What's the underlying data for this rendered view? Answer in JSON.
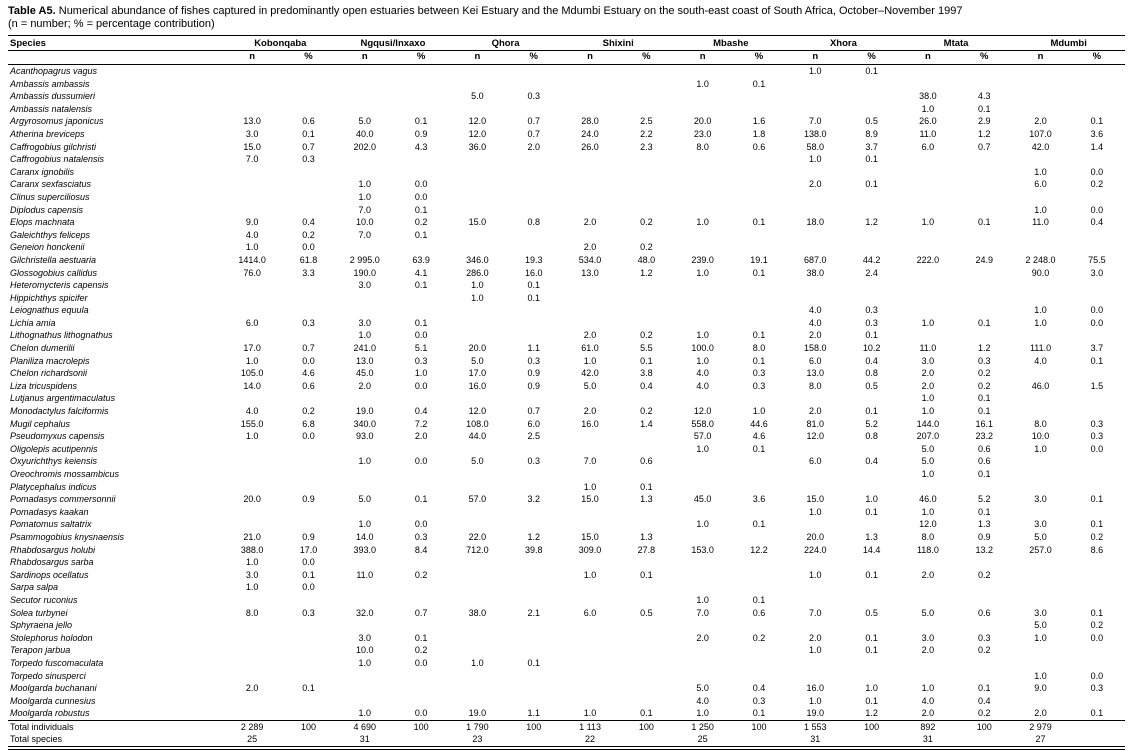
{
  "caption": {
    "label": "Table A5.",
    "text": " Numerical abundance of fishes captured in predominantly open estuaries between Kei Estuary and the Mdumbi Estuary on the south-east coast of South Africa, October–November 1997",
    "note": "(n = number; % = percentage contribution)"
  },
  "table": {
    "species_header": "Species",
    "estuaries": [
      "Kobonqaba",
      "Ngqusi/Inxaxo",
      "Qhora",
      "Shixini",
      "Mbashe",
      "Xhora",
      "Mtata",
      "Mdumbi"
    ],
    "subheaders": [
      "n",
      "%"
    ],
    "rows": [
      {
        "species": "Acanthopagrus vagus",
        "values": [
          "",
          "",
          "",
          "",
          "",
          "",
          "",
          "",
          "",
          "",
          "1.0",
          "0.1",
          "",
          "",
          "",
          ""
        ]
      },
      {
        "species": "Ambassis ambassis",
        "values": [
          "",
          "",
          "",
          "",
          "",
          "",
          "",
          "",
          "1.0",
          "0.1",
          "",
          "",
          "",
          "",
          "",
          ""
        ]
      },
      {
        "species": "Ambassis dussumieri",
        "values": [
          "",
          "",
          "",
          "",
          "5.0",
          "0.3",
          "",
          "",
          "",
          "",
          "",
          "",
          "38.0",
          "4.3",
          "",
          ""
        ]
      },
      {
        "species": "Ambassis natalensis",
        "values": [
          "",
          "",
          "",
          "",
          "",
          "",
          "",
          "",
          "",
          "",
          "",
          "",
          "1.0",
          "0.1",
          "",
          ""
        ]
      },
      {
        "species": "Argyrosomus japonicus",
        "values": [
          "13.0",
          "0.6",
          "5.0",
          "0.1",
          "12.0",
          "0.7",
          "28.0",
          "2.5",
          "20.0",
          "1.6",
          "7.0",
          "0.5",
          "26.0",
          "2.9",
          "2.0",
          "0.1"
        ]
      },
      {
        "species": "Atherina breviceps",
        "values": [
          "3.0",
          "0.1",
          "40.0",
          "0.9",
          "12.0",
          "0.7",
          "24.0",
          "2.2",
          "23.0",
          "1.8",
          "138.0",
          "8.9",
          "11.0",
          "1.2",
          "107.0",
          "3.6"
        ]
      },
      {
        "species": "Caffrogobius gilchristi",
        "values": [
          "15.0",
          "0.7",
          "202.0",
          "4.3",
          "36.0",
          "2.0",
          "26.0",
          "2.3",
          "8.0",
          "0.6",
          "58.0",
          "3.7",
          "6.0",
          "0.7",
          "42.0",
          "1.4"
        ]
      },
      {
        "species": "Caffrogobius natalensis",
        "values": [
          "7.0",
          "0.3",
          "",
          "",
          "",
          "",
          "",
          "",
          "",
          "",
          "1.0",
          "0.1",
          "",
          "",
          "",
          ""
        ]
      },
      {
        "species": "Caranx ignobilis",
        "values": [
          "",
          "",
          "",
          "",
          "",
          "",
          "",
          "",
          "",
          "",
          "",
          "",
          "",
          "",
          "1.0",
          "0.0"
        ]
      },
      {
        "species": "Caranx sexfasciatus",
        "values": [
          "",
          "",
          "1.0",
          "0.0",
          "",
          "",
          "",
          "",
          "",
          "",
          "2.0",
          "0.1",
          "",
          "",
          "6.0",
          "0.2"
        ]
      },
      {
        "species": "Clinus superciliosus",
        "values": [
          "",
          "",
          "1.0",
          "0.0",
          "",
          "",
          "",
          "",
          "",
          "",
          "",
          "",
          "",
          "",
          "",
          ""
        ]
      },
      {
        "species": "Diplodus capensis",
        "values": [
          "",
          "",
          "7.0",
          "0.1",
          "",
          "",
          "",
          "",
          "",
          "",
          "",
          "",
          "",
          "",
          "1.0",
          "0.0"
        ]
      },
      {
        "species": "Elops machnata",
        "values": [
          "9.0",
          "0.4",
          "10.0",
          "0.2",
          "15.0",
          "0.8",
          "2.0",
          "0.2",
          "1.0",
          "0.1",
          "18.0",
          "1.2",
          "1.0",
          "0.1",
          "11.0",
          "0.4"
        ]
      },
      {
        "species": "Galeichthys feliceps",
        "values": [
          "4.0",
          "0.2",
          "7.0",
          "0.1",
          "",
          "",
          "",
          "",
          "",
          "",
          "",
          "",
          "",
          "",
          "",
          ""
        ]
      },
      {
        "species": "Geneion honckenii",
        "values": [
          "1.0",
          "0.0",
          "",
          "",
          "",
          "",
          "2.0",
          "0.2",
          "",
          "",
          "",
          "",
          "",
          "",
          "",
          ""
        ]
      },
      {
        "species": "Gilchristella aestuaria",
        "values": [
          "1414.0",
          "61.8",
          "2 995.0",
          "63.9",
          "346.0",
          "19.3",
          "534.0",
          "48.0",
          "239.0",
          "19.1",
          "687.0",
          "44.2",
          "222.0",
          "24.9",
          "2 248.0",
          "75.5"
        ]
      },
      {
        "species": "Glossogobius callidus",
        "values": [
          "76.0",
          "3.3",
          "190.0",
          "4.1",
          "286.0",
          "16.0",
          "13.0",
          "1.2",
          "1.0",
          "0.1",
          "38.0",
          "2.4",
          "",
          "",
          "90.0",
          "3.0"
        ]
      },
      {
        "species": "Heteromycteris capensis",
        "values": [
          "",
          "",
          "3.0",
          "0.1",
          "1.0",
          "0.1",
          "",
          "",
          "",
          "",
          "",
          "",
          "",
          "",
          "",
          ""
        ]
      },
      {
        "species": "Hippichthys spicifer",
        "values": [
          "",
          "",
          "",
          "",
          "1.0",
          "0.1",
          "",
          "",
          "",
          "",
          "",
          "",
          "",
          "",
          "",
          ""
        ]
      },
      {
        "species": "Leiognathus equula",
        "values": [
          "",
          "",
          "",
          "",
          "",
          "",
          "",
          "",
          "",
          "",
          "4.0",
          "0.3",
          "",
          "",
          "1.0",
          "0.0"
        ]
      },
      {
        "species": "Lichia amia",
        "values": [
          "6.0",
          "0.3",
          "3.0",
          "0.1",
          "",
          "",
          "",
          "",
          "",
          "",
          "4.0",
          "0.3",
          "1.0",
          "0.1",
          "1.0",
          "0.0"
        ]
      },
      {
        "species": "Lithognathus lithognathus",
        "values": [
          "",
          "",
          "1.0",
          "0.0",
          "",
          "",
          "2.0",
          "0.2",
          "1.0",
          "0.1",
          "2.0",
          "0.1",
          "",
          "",
          "",
          ""
        ]
      },
      {
        "species": "Chelon dumerilii",
        "values": [
          "17.0",
          "0.7",
          "241.0",
          "5.1",
          "20.0",
          "1.1",
          "61.0",
          "5.5",
          "100.0",
          "8.0",
          "158.0",
          "10.2",
          "11.0",
          "1.2",
          "111.0",
          "3.7"
        ]
      },
      {
        "species": "Planiliza macrolepis",
        "values": [
          "1.0",
          "0.0",
          "13.0",
          "0.3",
          "5.0",
          "0.3",
          "1.0",
          "0.1",
          "1.0",
          "0.1",
          "6.0",
          "0.4",
          "3.0",
          "0.3",
          "4.0",
          "0.1"
        ]
      },
      {
        "species": "Chelon richardsonii",
        "values": [
          "105.0",
          "4.6",
          "45.0",
          "1.0",
          "17.0",
          "0.9",
          "42.0",
          "3.8",
          "4.0",
          "0.3",
          "13.0",
          "0.8",
          "2.0",
          "0.2",
          "",
          ""
        ]
      },
      {
        "species": "Liza tricuspidens",
        "values": [
          "14.0",
          "0.6",
          "2.0",
          "0.0",
          "16.0",
          "0.9",
          "5.0",
          "0.4",
          "4.0",
          "0.3",
          "8.0",
          "0.5",
          "2.0",
          "0.2",
          "46.0",
          "1.5"
        ]
      },
      {
        "species": "Lutjanus argentimaculatus",
        "values": [
          "",
          "",
          "",
          "",
          "",
          "",
          "",
          "",
          "",
          "",
          "",
          "",
          "1.0",
          "0.1",
          "",
          ""
        ]
      },
      {
        "species": "Monodactylus falciformis",
        "values": [
          "4.0",
          "0.2",
          "19.0",
          "0.4",
          "12.0",
          "0.7",
          "2.0",
          "0.2",
          "12.0",
          "1.0",
          "2.0",
          "0.1",
          "1.0",
          "0.1",
          "",
          ""
        ]
      },
      {
        "species": "Mugil cephalus",
        "values": [
          "155.0",
          "6.8",
          "340.0",
          "7.2",
          "108.0",
          "6.0",
          "16.0",
          "1.4",
          "558.0",
          "44.6",
          "81.0",
          "5.2",
          "144.0",
          "16.1",
          "8.0",
          "0.3"
        ]
      },
      {
        "species": "Pseudomyxus capensis",
        "values": [
          "1.0",
          "0.0",
          "93.0",
          "2.0",
          "44.0",
          "2.5",
          "",
          "",
          "57.0",
          "4.6",
          "12.0",
          "0.8",
          "207.0",
          "23.2",
          "10.0",
          "0.3"
        ]
      },
      {
        "species": "Oligolepis acutipennis",
        "values": [
          "",
          "",
          "",
          "",
          "",
          "",
          "",
          "",
          "1.0",
          "0.1",
          "",
          "",
          "5.0",
          "0.6",
          "1.0",
          "0.0"
        ]
      },
      {
        "species": "Oxyurichthys keiensis",
        "values": [
          "",
          "",
          "1.0",
          "0.0",
          "5.0",
          "0.3",
          "7.0",
          "0.6",
          "",
          "",
          "6.0",
          "0.4",
          "5.0",
          "0.6",
          "",
          ""
        ]
      },
      {
        "species": "Oreochromis mossambicus",
        "values": [
          "",
          "",
          "",
          "",
          "",
          "",
          "",
          "",
          "",
          "",
          "",
          "",
          "1.0",
          "0.1",
          "",
          ""
        ]
      },
      {
        "species": "Platycephalus indicus",
        "values": [
          "",
          "",
          "",
          "",
          "",
          "",
          "1.0",
          "0.1",
          "",
          "",
          "",
          "",
          "",
          "",
          "",
          ""
        ]
      },
      {
        "species": "Pomadasys commersonnii",
        "values": [
          "20.0",
          "0.9",
          "5.0",
          "0.1",
          "57.0",
          "3.2",
          "15.0",
          "1.3",
          "45.0",
          "3.6",
          "15.0",
          "1.0",
          "46.0",
          "5.2",
          "3.0",
          "0.1"
        ]
      },
      {
        "species": "Pomadasys kaakan",
        "values": [
          "",
          "",
          "",
          "",
          "",
          "",
          "",
          "",
          "",
          "",
          "1.0",
          "0.1",
          "1.0",
          "0.1",
          "",
          ""
        ]
      },
      {
        "species": "Pomatomus saltatrix",
        "values": [
          "",
          "",
          "1.0",
          "0.0",
          "",
          "",
          "",
          "",
          "1.0",
          "0.1",
          "",
          "",
          "12.0",
          "1.3",
          "3.0",
          "0.1"
        ]
      },
      {
        "species": "Psammogobius knysnaensis",
        "values": [
          "21.0",
          "0.9",
          "14.0",
          "0.3",
          "22.0",
          "1.2",
          "15.0",
          "1.3",
          "",
          "",
          "20.0",
          "1.3",
          "8.0",
          "0.9",
          "5.0",
          "0.2"
        ]
      },
      {
        "species": "Rhabdosargus holubi",
        "values": [
          "388.0",
          "17.0",
          "393.0",
          "8.4",
          "712.0",
          "39.8",
          "309.0",
          "27.8",
          "153.0",
          "12.2",
          "224.0",
          "14.4",
          "118.0",
          "13.2",
          "257.0",
          "8.6"
        ]
      },
      {
        "species": "Rhabdosargus sarba",
        "values": [
          "1.0",
          "0.0",
          "",
          "",
          "",
          "",
          "",
          "",
          "",
          "",
          "",
          "",
          "",
          "",
          "",
          ""
        ]
      },
      {
        "species": "Sardinops ocellatus",
        "values": [
          "3.0",
          "0.1",
          "11.0",
          "0.2",
          "",
          "",
          "1.0",
          "0.1",
          "",
          "",
          "1.0",
          "0.1",
          "2.0",
          "0.2",
          "",
          ""
        ]
      },
      {
        "species": "Sarpa salpa",
        "values": [
          "1.0",
          "0.0",
          "",
          "",
          "",
          "",
          "",
          "",
          "",
          "",
          "",
          "",
          "",
          "",
          "",
          ""
        ]
      },
      {
        "species": "Secutor ruconius",
        "values": [
          "",
          "",
          "",
          "",
          "",
          "",
          "",
          "",
          "1.0",
          "0.1",
          "",
          "",
          "",
          "",
          "",
          ""
        ]
      },
      {
        "species": "Solea turbynei",
        "values": [
          "8.0",
          "0.3",
          "32.0",
          "0.7",
          "38.0",
          "2.1",
          "6.0",
          "0.5",
          "7.0",
          "0.6",
          "7.0",
          "0.5",
          "5.0",
          "0.6",
          "3.0",
          "0.1"
        ]
      },
      {
        "species": "Sphyraena jello",
        "values": [
          "",
          "",
          "",
          "",
          "",
          "",
          "",
          "",
          "",
          "",
          "",
          "",
          "",
          "",
          "5.0",
          "0.2"
        ]
      },
      {
        "species": "Stolephorus holodon",
        "values": [
          "",
          "",
          "3.0",
          "0.1",
          "",
          "",
          "",
          "",
          "2.0",
          "0.2",
          "2.0",
          "0.1",
          "3.0",
          "0.3",
          "1.0",
          "0.0"
        ]
      },
      {
        "species": "Terapon jarbua",
        "values": [
          "",
          "",
          "10.0",
          "0.2",
          "",
          "",
          "",
          "",
          "",
          "",
          "1.0",
          "0.1",
          "2.0",
          "0.2",
          "",
          ""
        ]
      },
      {
        "species": "Torpedo fuscomaculata",
        "values": [
          "",
          "",
          "1.0",
          "0.0",
          "1.0",
          "0.1",
          "",
          "",
          "",
          "",
          "",
          "",
          "",
          "",
          "",
          ""
        ]
      },
      {
        "species": "Torpedo sinusperci",
        "values": [
          "",
          "",
          "",
          "",
          "",
          "",
          "",
          "",
          "",
          "",
          "",
          "",
          "",
          "",
          "1.0",
          "0.0"
        ]
      },
      {
        "species": "Moolgarda buchanani",
        "values": [
          "2.0",
          "0.1",
          "",
          "",
          "",
          "",
          "",
          "",
          "5.0",
          "0.4",
          "16.0",
          "1.0",
          "1.0",
          "0.1",
          "9.0",
          "0.3"
        ]
      },
      {
        "species": "Moolgarda cunnesius",
        "values": [
          "",
          "",
          "",
          "",
          "",
          "",
          "",
          "",
          "4.0",
          "0.3",
          "1.0",
          "0.1",
          "4.0",
          "0.4",
          "",
          ""
        ]
      },
      {
        "species": "Moolgarda robustus",
        "values": [
          "",
          "",
          "1.0",
          "0.0",
          "19.0",
          "1.1",
          "1.0",
          "0.1",
          "1.0",
          "0.1",
          "19.0",
          "1.2",
          "2.0",
          "0.2",
          "2.0",
          "0.1"
        ]
      }
    ],
    "totals": [
      {
        "label": "Total individuals",
        "values": [
          "2 289",
          "100",
          "4 690",
          "100",
          "1 790",
          "100",
          "1 113",
          "100",
          "1 250",
          "100",
          "1 553",
          "100",
          "892",
          "100",
          "2 979",
          ""
        ]
      },
      {
        "label": "Total species",
        "values": [
          "25",
          "",
          "31",
          "",
          "23",
          "",
          "22",
          "",
          "25",
          "",
          "31",
          "",
          "31",
          "",
          "27",
          ""
        ]
      }
    ]
  }
}
